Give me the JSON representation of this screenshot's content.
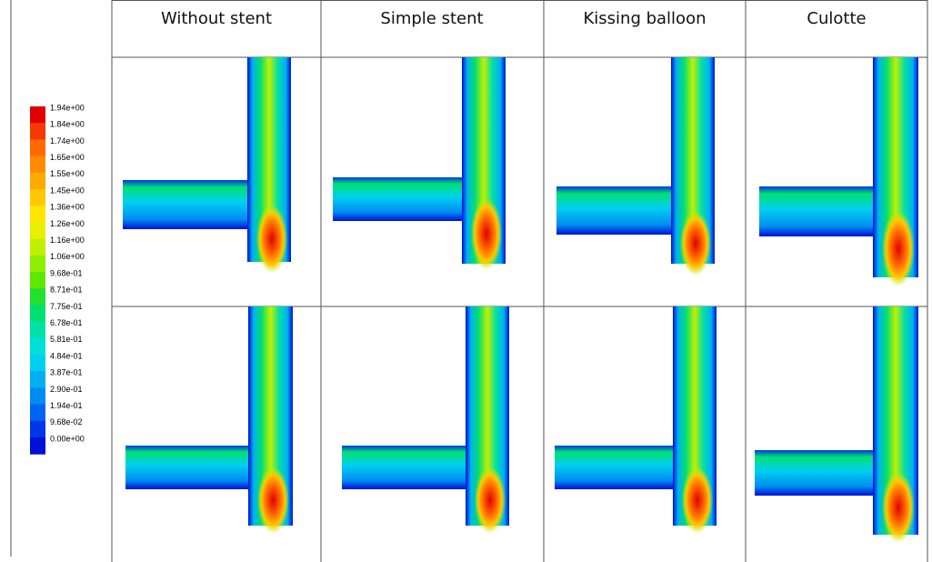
{
  "table": {
    "columns": [
      "Without stent",
      "Simple stent",
      "Kissing balloon",
      "Culotte"
    ]
  },
  "legend": {
    "items": [
      {
        "label": "1.94e+00",
        "color": "#e00000"
      },
      {
        "label": "1.84e+00",
        "color": "#f53a00"
      },
      {
        "label": "1.74e+00",
        "color": "#ff6a00"
      },
      {
        "label": "1.65e+00",
        "color": "#ff8c00"
      },
      {
        "label": "1.55e+00",
        "color": "#ffaa00"
      },
      {
        "label": "1.45e+00",
        "color": "#ffc800"
      },
      {
        "label": "1.36e+00",
        "color": "#ffe600"
      },
      {
        "label": "1.26e+00",
        "color": "#e8f000"
      },
      {
        "label": "1.16e+00",
        "color": "#c0f000"
      },
      {
        "label": "1.06e+00",
        "color": "#90ee00"
      },
      {
        "label": "9.68e-01",
        "color": "#5fe800"
      },
      {
        "label": "8.71e-01",
        "color": "#22e030"
      },
      {
        "label": "7.75e-01",
        "color": "#00e070"
      },
      {
        "label": "6.78e-01",
        "color": "#00e0a8"
      },
      {
        "label": "5.81e-01",
        "color": "#00e0d8"
      },
      {
        "label": "4.84e-01",
        "color": "#00d0f0"
      },
      {
        "label": "3.87e-01",
        "color": "#00b0f0"
      },
      {
        "label": "2.90e-01",
        "color": "#008cf0"
      },
      {
        "label": "1.94e-01",
        "color": "#0064f0"
      },
      {
        "label": "9.68e-02",
        "color": "#0036e8"
      },
      {
        "label": "0.00e+00",
        "color": "#0010d8"
      }
    ]
  }
}
